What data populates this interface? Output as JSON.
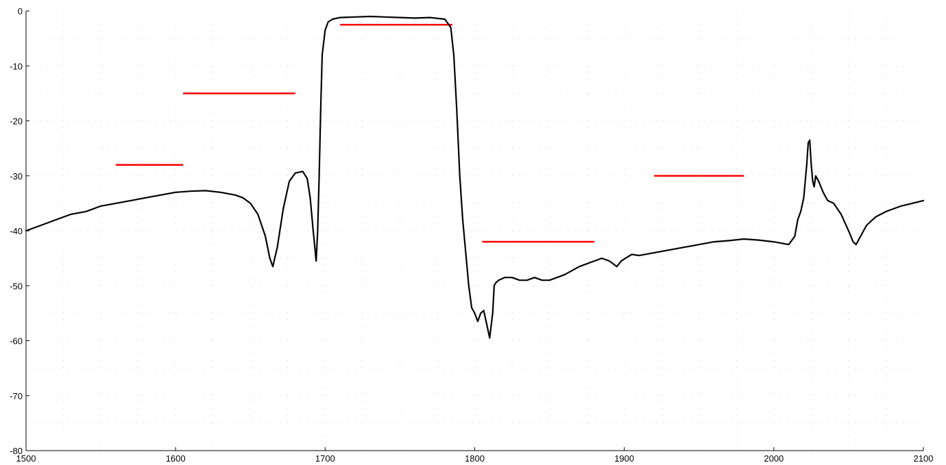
{
  "chart_data": {
    "type": "line",
    "title": "",
    "xlabel": "",
    "ylabel": "",
    "xlim": [
      1500,
      2100
    ],
    "ylim": [
      -80,
      0
    ],
    "xticks": [
      1500,
      1600,
      1700,
      1800,
      1900,
      2000,
      2100
    ],
    "yticks": [
      0,
      -10,
      -20,
      -30,
      -40,
      -50,
      -60,
      -70,
      -80
    ],
    "grid": "dotted",
    "legend": "none",
    "colors": {
      "main": "#000000",
      "mask": "#ff0000",
      "grid": "#c8d7c8"
    },
    "series": [
      {
        "x": [
          1500,
          1510,
          1520,
          1530,
          1540,
          1550,
          1560,
          1570,
          1580,
          1590,
          1600,
          1610,
          1620,
          1630,
          1640,
          1645,
          1650,
          1655,
          1660,
          1663,
          1665,
          1668,
          1672,
          1676,
          1680,
          1685,
          1688,
          1690,
          1692,
          1694,
          1695,
          1696,
          1697,
          1698,
          1700,
          1702,
          1705,
          1710,
          1720,
          1730,
          1740,
          1750,
          1760,
          1770,
          1780,
          1784,
          1786,
          1788,
          1790,
          1792,
          1794,
          1796,
          1798,
          1800,
          1802,
          1804,
          1806,
          1808,
          1810,
          1812,
          1813,
          1814,
          1816,
          1820,
          1825,
          1830,
          1835,
          1840,
          1845,
          1850,
          1855,
          1860,
          1870,
          1880,
          1885,
          1890,
          1895,
          1898,
          1902,
          1905,
          1910,
          1920,
          1930,
          1940,
          1950,
          1960,
          1970,
          1980,
          1990,
          2000,
          2010,
          2014,
          2016,
          2018,
          2020,
          2022,
          2023,
          2024,
          2025,
          2026,
          2027,
          2028,
          2030,
          2033,
          2036,
          2040,
          2045,
          2050,
          2053,
          2055,
          2058,
          2062,
          2068,
          2075,
          2085,
          2100
        ],
        "y": [
          -40,
          -39,
          -38,
          -37,
          -36.5,
          -35.5,
          -35,
          -34.5,
          -34,
          -33.5,
          -33,
          -32.8,
          -32.7,
          -33,
          -33.5,
          -34,
          -35,
          -37,
          -41,
          -45,
          -46.5,
          -43,
          -36,
          -31,
          -29.5,
          -29.2,
          -30.5,
          -34,
          -40,
          -45.5,
          -40,
          -30,
          -18,
          -8,
          -3.5,
          -2,
          -1.5,
          -1.2,
          -1.1,
          -1,
          -1.1,
          -1.2,
          -1.3,
          -1.2,
          -1.5,
          -3,
          -8,
          -18,
          -30,
          -38,
          -44,
          -50,
          -54,
          -55,
          -56.5,
          -55,
          -54.5,
          -57,
          -59.5,
          -55,
          -50,
          -49.5,
          -49,
          -48.5,
          -48.5,
          -49,
          -49,
          -48.5,
          -49,
          -49,
          -48.5,
          -48,
          -46.5,
          -45.5,
          -45,
          -45.5,
          -46.5,
          -45.5,
          -44.8,
          -44.3,
          -44.5,
          -44,
          -43.5,
          -43,
          -42.5,
          -42,
          -41.8,
          -41.5,
          -41.7,
          -42,
          -42.5,
          -41,
          -38,
          -36.5,
          -34,
          -28,
          -24,
          -23.5,
          -28,
          -31,
          -32,
          -30,
          -31,
          -33,
          -34.5,
          -35,
          -37,
          -40,
          -42,
          -42.5,
          -41,
          -39,
          -37.5,
          -36.5,
          -35.5,
          -34.5
        ]
      }
    ],
    "mask_segments": [
      {
        "x0": 1560,
        "x1": 1605,
        "y": -28
      },
      {
        "x0": 1605,
        "x1": 1680,
        "y": -15
      },
      {
        "x0": 1710,
        "x1": 1785,
        "y": -2.5
      },
      {
        "x0": 1805,
        "x1": 1880,
        "y": -42
      },
      {
        "x0": 1920,
        "x1": 1980,
        "y": -30
      }
    ]
  }
}
